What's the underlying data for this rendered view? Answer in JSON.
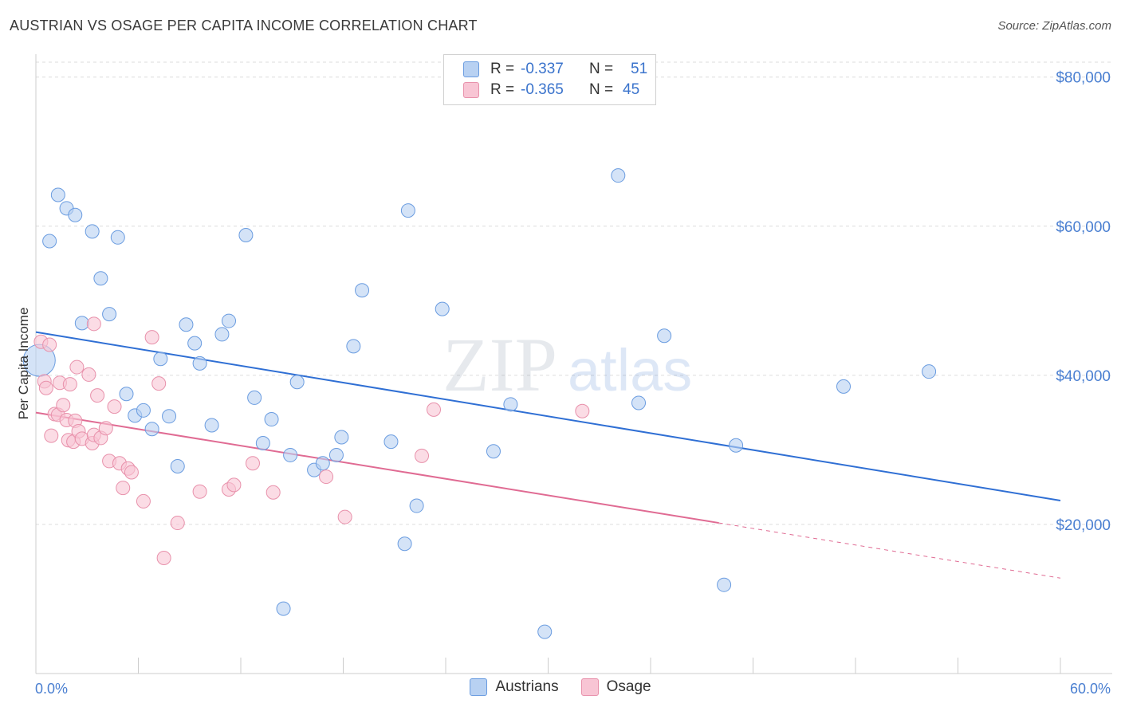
{
  "header": {
    "title": "AUSTRIAN VS OSAGE PER CAPITA INCOME CORRELATION CHART",
    "source": "Source: ZipAtlas.com"
  },
  "watermark": {
    "zip": "ZIP",
    "atlas": "atlas"
  },
  "colors": {
    "austrians_fill": "#b8d1f2",
    "austrians_stroke": "#6a9ce0",
    "austrians_line": "#2f6fd4",
    "osage_fill": "#f8c5d4",
    "osage_stroke": "#e891ab",
    "osage_line": "#e06b93",
    "tick_text": "#4a7fd1"
  },
  "legend": {
    "rows": [
      {
        "r_label": "R =",
        "r_value": "-0.337",
        "n_label": "N =",
        "n_value": "51"
      },
      {
        "r_label": "R =",
        "r_value": "-0.365",
        "n_label": "N =",
        "n_value": "45"
      }
    ],
    "series_names": [
      "Austrians",
      "Osage"
    ]
  },
  "chart_data": {
    "type": "scatter",
    "title": "AUSTRIAN VS OSAGE PER CAPITA INCOME CORRELATION CHART",
    "xlabel": "",
    "ylabel": "Per Capita Income",
    "xlim": [
      0,
      60
    ],
    "ylim": [
      0,
      82000
    ],
    "x_tick_labels": [
      "0.0%",
      "60.0%"
    ],
    "y_ticks": [
      20000,
      40000,
      60000,
      80000
    ],
    "y_tick_labels": [
      "$20,000",
      "$40,000",
      "$60,000",
      "$80,000"
    ],
    "grid": true,
    "legend_position": "top-center",
    "series": [
      {
        "name": "Austrians",
        "points": [
          [
            0.2,
            42000
          ],
          [
            0.8,
            58000
          ],
          [
            1.3,
            64200
          ],
          [
            1.8,
            62400
          ],
          [
            2.3,
            61500
          ],
          [
            2.7,
            47000
          ],
          [
            3.3,
            59300
          ],
          [
            3.8,
            53000
          ],
          [
            4.3,
            48200
          ],
          [
            4.8,
            58500
          ],
          [
            5.3,
            37500
          ],
          [
            5.8,
            34600
          ],
          [
            6.3,
            35300
          ],
          [
            6.8,
            32800
          ],
          [
            7.3,
            42200
          ],
          [
            7.8,
            34500
          ],
          [
            8.3,
            27800
          ],
          [
            8.8,
            46800
          ],
          [
            9.3,
            44300
          ],
          [
            9.6,
            41600
          ],
          [
            10.3,
            33300
          ],
          [
            10.9,
            45500
          ],
          [
            11.3,
            47300
          ],
          [
            12.3,
            58800
          ],
          [
            12.8,
            37000
          ],
          [
            13.3,
            30900
          ],
          [
            13.8,
            34100
          ],
          [
            14.5,
            8700
          ],
          [
            14.9,
            29300
          ],
          [
            15.3,
            39100
          ],
          [
            16.3,
            27300
          ],
          [
            16.8,
            28200
          ],
          [
            17.6,
            29300
          ],
          [
            17.9,
            31700
          ],
          [
            18.6,
            43900
          ],
          [
            19.1,
            51400
          ],
          [
            20.8,
            31100
          ],
          [
            21.6,
            17400
          ],
          [
            21.8,
            62100
          ],
          [
            22.3,
            22500
          ],
          [
            23.8,
            48900
          ],
          [
            26.8,
            29800
          ],
          [
            27.8,
            36100
          ],
          [
            29.8,
            5600
          ],
          [
            34.1,
            66800
          ],
          [
            35.3,
            36300
          ],
          [
            36.8,
            45300
          ],
          [
            40.3,
            11900
          ],
          [
            41.0,
            30600
          ],
          [
            47.3,
            38500
          ],
          [
            52.3,
            40500
          ]
        ],
        "trend": {
          "x1": 0,
          "y1": 45800,
          "x2": 60,
          "y2": 23200
        }
      },
      {
        "name": "Osage",
        "points": [
          [
            0.3,
            44500
          ],
          [
            0.5,
            39200
          ],
          [
            0.6,
            38300
          ],
          [
            0.8,
            44100
          ],
          [
            0.9,
            31900
          ],
          [
            1.1,
            34800
          ],
          [
            1.3,
            34700
          ],
          [
            1.4,
            39000
          ],
          [
            1.6,
            36000
          ],
          [
            1.8,
            34000
          ],
          [
            1.9,
            31300
          ],
          [
            2.0,
            38800
          ],
          [
            2.2,
            31100
          ],
          [
            2.3,
            33900
          ],
          [
            2.4,
            41100
          ],
          [
            2.5,
            32500
          ],
          [
            2.7,
            31500
          ],
          [
            3.1,
            40100
          ],
          [
            3.3,
            30900
          ],
          [
            3.4,
            32000
          ],
          [
            3.6,
            37300
          ],
          [
            3.8,
            31600
          ],
          [
            4.1,
            32900
          ],
          [
            4.3,
            28500
          ],
          [
            4.6,
            35800
          ],
          [
            4.9,
            28200
          ],
          [
            5.1,
            24900
          ],
          [
            5.4,
            27500
          ],
          [
            5.6,
            27000
          ],
          [
            6.3,
            23100
          ],
          [
            3.4,
            46900
          ],
          [
            6.8,
            45100
          ],
          [
            7.2,
            38900
          ],
          [
            7.5,
            15500
          ],
          [
            8.3,
            20200
          ],
          [
            9.6,
            24400
          ],
          [
            11.3,
            24700
          ],
          [
            11.6,
            25300
          ],
          [
            12.7,
            28200
          ],
          [
            13.9,
            24300
          ],
          [
            17.0,
            26400
          ],
          [
            18.1,
            21000
          ],
          [
            22.6,
            29200
          ],
          [
            23.3,
            35400
          ],
          [
            32.0,
            35200
          ]
        ],
        "trend": {
          "x1": 0,
          "y1": 35000,
          "x2": 40,
          "y2": 20200,
          "dashed_to_x": 60,
          "dashed_to_y": 12800
        }
      }
    ]
  }
}
